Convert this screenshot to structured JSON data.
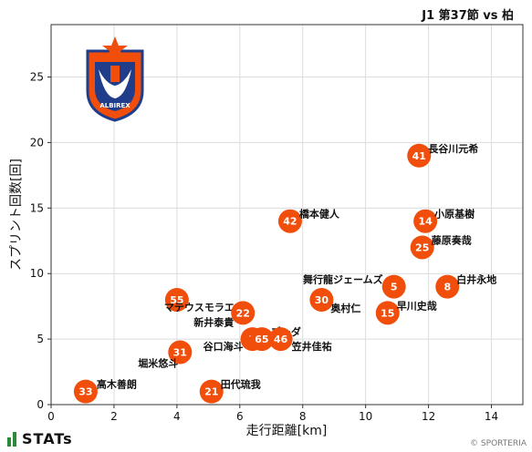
{
  "header": {
    "match_title": "J1 第37節 vs 柏"
  },
  "footer": {
    "brand_label": "STATs",
    "credit": "© SPORTERIA"
  },
  "colors": {
    "accent": "#f04e0a",
    "grid": "#dcdcdc",
    "brand_green": "#2a8a3a"
  },
  "logo": {
    "icon": "club-crest-icon",
    "text": "ALBIREX"
  },
  "chart_data": {
    "type": "scatter",
    "title": "",
    "xlabel": "走行距離[km]",
    "ylabel": "スプリント回数[回]",
    "xlim": [
      0,
      15
    ],
    "ylim": [
      0,
      29
    ],
    "xticks": [
      0,
      2,
      4,
      6,
      8,
      10,
      12,
      14
    ],
    "yticks": [
      0,
      5,
      10,
      15,
      20,
      25
    ],
    "grid": true,
    "points": [
      {
        "number": "41",
        "name": "長谷川元希",
        "x": 11.7,
        "y": 19
      },
      {
        "number": "42",
        "name": "橋本健人",
        "x": 7.6,
        "y": 14
      },
      {
        "number": "14",
        "name": "小原基樹",
        "x": 11.9,
        "y": 14
      },
      {
        "number": "25",
        "name": "藤原奏哉",
        "x": 11.8,
        "y": 12
      },
      {
        "number": "5",
        "name": "舞行龍ジェームズ",
        "x": 10.9,
        "y": 9
      },
      {
        "number": "8",
        "name": "白井永地",
        "x": 12.6,
        "y": 9
      },
      {
        "number": "30",
        "name": "奥村仁",
        "x": 8.6,
        "y": 8
      },
      {
        "number": "15",
        "name": "早川史哉",
        "x": 10.7,
        "y": 7
      },
      {
        "number": "55",
        "name": "マテウスモラエス",
        "x": 4.0,
        "y": 8
      },
      {
        "number": "22",
        "name": "新井泰貴",
        "x": 6.1,
        "y": 7
      },
      {
        "number": "7",
        "name": "谷口海斗",
        "x": 6.4,
        "y": 5
      },
      {
        "number": "65",
        "name": "ブーダ",
        "x": 6.7,
        "y": 5
      },
      {
        "number": "46",
        "name": "笠井佳祐",
        "x": 7.3,
        "y": 5
      },
      {
        "number": "31",
        "name": "堀米悠斗",
        "x": 4.1,
        "y": 4
      },
      {
        "number": "33",
        "name": "高木善朗",
        "x": 1.1,
        "y": 1
      },
      {
        "number": "21",
        "name": "田代琉我",
        "x": 5.1,
        "y": 1
      }
    ]
  }
}
